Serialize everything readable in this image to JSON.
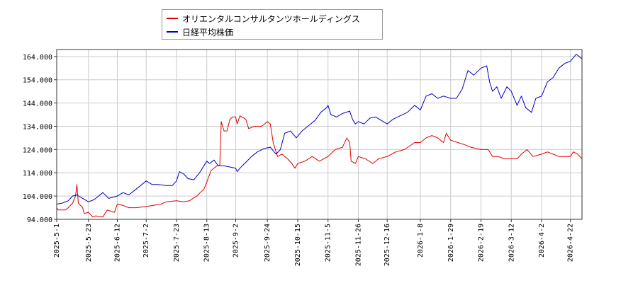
{
  "chart_data": {
    "type": "line",
    "title": "",
    "xlabel": "",
    "ylabel": "",
    "ylim": [
      94,
      167
    ],
    "yticks": [
      "94.000",
      "104.000",
      "114.000",
      "124.000",
      "134.000",
      "144.000",
      "154.000",
      "164.000"
    ],
    "ytick_values": [
      94,
      104,
      114,
      124,
      134,
      144,
      154,
      164
    ],
    "xlim": [
      "2025-05-01",
      "2026-04-30"
    ],
    "xticks": [
      "2025-5-1",
      "2025-5-23",
      "2025-6-12",
      "2025-7-2",
      "2025-7-23",
      "2025-8-13",
      "2025-9-2",
      "2025-9-24",
      "2025-10-15",
      "2025-11-5",
      "2025-11-26",
      "2025-12-16",
      "2026-1-8",
      "2026-1-29",
      "2026-2-19",
      "2026-3-12",
      "2026-4-2",
      "2026-4-22"
    ],
    "xtick_dates": [
      "2025-05-01",
      "2025-05-23",
      "2025-06-12",
      "2025-07-02",
      "2025-07-23",
      "2025-08-13",
      "2025-09-02",
      "2025-09-24",
      "2025-10-15",
      "2025-11-05",
      "2025-11-26",
      "2025-12-16",
      "2026-01-08",
      "2026-01-29",
      "2026-02-19",
      "2026-03-12",
      "2026-04-02",
      "2026-04-22"
    ],
    "grid": true,
    "legend_position": "top-left",
    "series": [
      {
        "name": "オリエンタルコンサルタンツホールディングス",
        "color": "#dd0000",
        "points": [
          [
            "2025-05-01",
            99
          ],
          [
            "2025-05-02",
            98
          ],
          [
            "2025-05-07",
            98
          ],
          [
            "2025-05-09",
            99
          ],
          [
            "2025-05-12",
            101
          ],
          [
            "2025-05-14",
            104
          ],
          [
            "2025-05-15",
            109
          ],
          [
            "2025-05-16",
            101
          ],
          [
            "2025-05-19",
            99
          ],
          [
            "2025-05-20",
            96.5
          ],
          [
            "2025-05-23",
            97
          ],
          [
            "2025-05-26",
            95
          ],
          [
            "2025-05-28",
            95.5
          ],
          [
            "2025-06-02",
            95
          ],
          [
            "2025-06-05",
            98
          ],
          [
            "2025-06-10",
            97
          ],
          [
            "2025-06-12",
            100.5
          ],
          [
            "2025-06-16",
            100
          ],
          [
            "2025-06-20",
            99
          ],
          [
            "2025-06-25",
            99
          ],
          [
            "2025-07-02",
            99.5
          ],
          [
            "2025-07-07",
            100
          ],
          [
            "2025-07-12",
            100.5
          ],
          [
            "2025-07-16",
            101.5
          ],
          [
            "2025-07-23",
            102
          ],
          [
            "2025-07-28",
            101.5
          ],
          [
            "2025-08-01",
            102
          ],
          [
            "2025-08-06",
            104
          ],
          [
            "2025-08-11",
            107
          ],
          [
            "2025-08-13",
            110
          ],
          [
            "2025-08-16",
            115
          ],
          [
            "2025-08-20",
            117
          ],
          [
            "2025-08-22",
            117
          ],
          [
            "2025-08-23",
            136
          ],
          [
            "2025-08-25",
            132
          ],
          [
            "2025-08-27",
            132
          ],
          [
            "2025-08-29",
            137
          ],
          [
            "2025-08-31",
            138
          ],
          [
            "2025-09-02",
            138
          ],
          [
            "2025-09-03",
            135
          ],
          [
            "2025-09-05",
            138.5
          ],
          [
            "2025-09-09",
            137
          ],
          [
            "2025-09-11",
            133
          ],
          [
            "2025-09-15",
            134
          ],
          [
            "2025-09-20",
            134
          ],
          [
            "2025-09-24",
            136
          ],
          [
            "2025-09-26",
            135
          ],
          [
            "2025-09-28",
            127
          ],
          [
            "2025-10-01",
            121
          ],
          [
            "2025-10-04",
            122
          ],
          [
            "2025-10-08",
            120
          ],
          [
            "2025-10-11",
            118
          ],
          [
            "2025-10-13",
            116
          ],
          [
            "2025-10-15",
            118
          ],
          [
            "2025-10-20",
            119
          ],
          [
            "2025-10-25",
            121
          ],
          [
            "2025-10-30",
            119
          ],
          [
            "2025-11-05",
            121
          ],
          [
            "2025-11-10",
            124
          ],
          [
            "2025-11-15",
            125
          ],
          [
            "2025-11-18",
            129
          ],
          [
            "2025-11-20",
            127
          ],
          [
            "2025-11-21",
            119
          ],
          [
            "2025-11-24",
            118
          ],
          [
            "2025-11-26",
            121
          ],
          [
            "2025-12-01",
            120
          ],
          [
            "2025-12-06",
            118
          ],
          [
            "2025-12-10",
            120
          ],
          [
            "2025-12-16",
            121
          ],
          [
            "2025-12-22",
            123
          ],
          [
            "2025-12-28",
            124
          ],
          [
            "2026-01-04",
            127
          ],
          [
            "2026-01-08",
            127
          ],
          [
            "2026-01-12",
            129
          ],
          [
            "2026-01-16",
            130
          ],
          [
            "2026-01-20",
            129
          ],
          [
            "2026-01-24",
            127
          ],
          [
            "2026-01-26",
            131
          ],
          [
            "2026-01-29",
            128
          ],
          [
            "2026-02-03",
            127
          ],
          [
            "2026-02-08",
            126
          ],
          [
            "2026-02-12",
            125
          ],
          [
            "2026-02-19",
            124
          ],
          [
            "2026-02-24",
            124
          ],
          [
            "2026-02-27",
            121
          ],
          [
            "2026-03-03",
            121
          ],
          [
            "2026-03-07",
            120
          ],
          [
            "2026-03-12",
            120
          ],
          [
            "2026-03-16",
            120
          ],
          [
            "2026-03-19",
            122
          ],
          [
            "2026-03-23",
            124
          ],
          [
            "2026-03-27",
            121
          ],
          [
            "2026-04-02",
            122
          ],
          [
            "2026-04-06",
            123
          ],
          [
            "2026-04-10",
            122
          ],
          [
            "2026-04-14",
            121
          ],
          [
            "2026-04-18",
            121
          ],
          [
            "2026-04-22",
            121
          ],
          [
            "2026-04-24",
            123
          ],
          [
            "2026-04-27",
            122
          ],
          [
            "2026-04-30",
            120
          ]
        ]
      },
      {
        "name": "日経平均株価",
        "color": "#0000cc",
        "points": [
          [
            "2025-05-01",
            100.5
          ],
          [
            "2025-05-05",
            101
          ],
          [
            "2025-05-09",
            102
          ],
          [
            "2025-05-12",
            104
          ],
          [
            "2025-05-15",
            104.5
          ],
          [
            "2025-05-19",
            103
          ],
          [
            "2025-05-23",
            101.5
          ],
          [
            "2025-05-27",
            102.5
          ],
          [
            "2025-06-02",
            105.5
          ],
          [
            "2025-06-06",
            103
          ],
          [
            "2025-06-12",
            104
          ],
          [
            "2025-06-16",
            105.5
          ],
          [
            "2025-06-20",
            104.5
          ],
          [
            "2025-06-25",
            107
          ],
          [
            "2025-07-02",
            110.5
          ],
          [
            "2025-07-06",
            109
          ],
          [
            "2025-07-10",
            109
          ],
          [
            "2025-07-16",
            108.5
          ],
          [
            "2025-07-20",
            108.5
          ],
          [
            "2025-07-23",
            110.5
          ],
          [
            "2025-07-25",
            114.5
          ],
          [
            "2025-07-28",
            113.5
          ],
          [
            "2025-07-31",
            111.5
          ],
          [
            "2025-08-04",
            111
          ],
          [
            "2025-08-08",
            114
          ],
          [
            "2025-08-13",
            119
          ],
          [
            "2025-08-15",
            118
          ],
          [
            "2025-08-18",
            119.5
          ],
          [
            "2025-08-21",
            117
          ],
          [
            "2025-08-25",
            117
          ],
          [
            "2025-08-29",
            116.5
          ],
          [
            "2025-09-02",
            116
          ],
          [
            "2025-09-03",
            114.5
          ],
          [
            "2025-09-05",
            116
          ],
          [
            "2025-09-09",
            118.5
          ],
          [
            "2025-09-13",
            121
          ],
          [
            "2025-09-17",
            123
          ],
          [
            "2025-09-22",
            124.5
          ],
          [
            "2025-09-26",
            125
          ],
          [
            "2025-09-30",
            122
          ],
          [
            "2025-10-03",
            124
          ],
          [
            "2025-10-06",
            131
          ],
          [
            "2025-10-10",
            132
          ],
          [
            "2025-10-14",
            129
          ],
          [
            "2025-10-18",
            132
          ],
          [
            "2025-10-22",
            134
          ],
          [
            "2025-10-27",
            136.5
          ],
          [
            "2025-10-31",
            140
          ],
          [
            "2025-11-04",
            142
          ],
          [
            "2025-11-05",
            143
          ],
          [
            "2025-11-07",
            139
          ],
          [
            "2025-11-11",
            138
          ],
          [
            "2025-11-15",
            139.5
          ],
          [
            "2025-11-20",
            140.5
          ],
          [
            "2025-11-22",
            137
          ],
          [
            "2025-11-24",
            135
          ],
          [
            "2025-11-26",
            136
          ],
          [
            "2025-11-30",
            135
          ],
          [
            "2025-12-04",
            137.5
          ],
          [
            "2025-12-08",
            138
          ],
          [
            "2025-12-12",
            136.5
          ],
          [
            "2025-12-16",
            135
          ],
          [
            "2025-12-20",
            137
          ],
          [
            "2025-12-25",
            138.5
          ],
          [
            "2025-12-30",
            140
          ],
          [
            "2026-01-04",
            143
          ],
          [
            "2026-01-08",
            141
          ],
          [
            "2026-01-12",
            147
          ],
          [
            "2026-01-16",
            148
          ],
          [
            "2026-01-20",
            146
          ],
          [
            "2026-01-24",
            147
          ],
          [
            "2026-01-29",
            146
          ],
          [
            "2026-02-02",
            146
          ],
          [
            "2026-02-06",
            150
          ],
          [
            "2026-02-10",
            158
          ],
          [
            "2026-02-14",
            156
          ],
          [
            "2026-02-19",
            159
          ],
          [
            "2026-02-23",
            160
          ],
          [
            "2026-02-25",
            153
          ],
          [
            "2026-02-27",
            149
          ],
          [
            "2026-03-02",
            151
          ],
          [
            "2026-03-05",
            146
          ],
          [
            "2026-03-09",
            151
          ],
          [
            "2026-03-12",
            149
          ],
          [
            "2026-03-16",
            143
          ],
          [
            "2026-03-19",
            147
          ],
          [
            "2026-03-22",
            142
          ],
          [
            "2026-03-26",
            140
          ],
          [
            "2026-03-29",
            146
          ],
          [
            "2026-04-02",
            147
          ],
          [
            "2026-04-06",
            153
          ],
          [
            "2026-04-10",
            155
          ],
          [
            "2026-04-14",
            159
          ],
          [
            "2026-04-18",
            161
          ],
          [
            "2026-04-22",
            162
          ],
          [
            "2026-04-26",
            165
          ],
          [
            "2026-04-30",
            163
          ]
        ]
      }
    ]
  }
}
